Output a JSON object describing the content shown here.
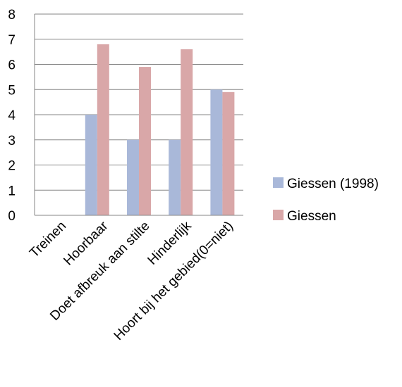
{
  "chart_data": {
    "type": "bar",
    "title": "",
    "xlabel": "",
    "ylabel": "",
    "categories": [
      "Treinen",
      "Hoorbaar",
      "Doet afbreuk aan stilte",
      "Hinderlijk",
      "Hoort bij het gebied(0=niet)"
    ],
    "series": [
      {
        "name": "Giessen (1998)",
        "values": [
          null,
          4,
          3,
          3,
          5
        ],
        "color": "#a9b8d9"
      },
      {
        "name": "Giessen",
        "values": [
          null,
          6.8,
          5.9,
          6.6,
          4.9
        ],
        "color": "#d9a7a8"
      }
    ],
    "ylim": [
      0,
      8
    ],
    "yticks": [
      "0",
      "1",
      "2",
      "3",
      "4",
      "5",
      "6",
      "7",
      "8"
    ],
    "grid": true,
    "legend": "right"
  }
}
